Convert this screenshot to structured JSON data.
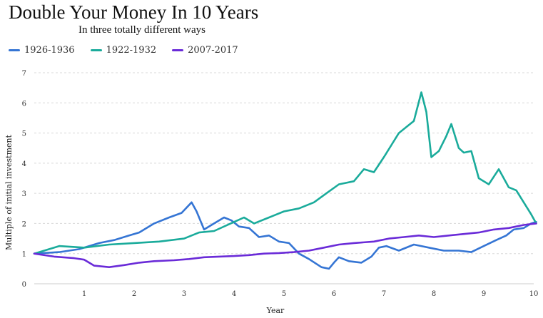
{
  "chart_data": {
    "type": "line",
    "title": "Double Your Money In 10 Years",
    "subtitle": "In three totally different ways",
    "xlabel": "Year",
    "ylabel": "Multiple of initial investment",
    "xlim": [
      0,
      10
    ],
    "ylim": [
      0,
      7
    ],
    "xticks": [
      "1",
      "2",
      "3",
      "4",
      "5",
      "6",
      "7",
      "8",
      "9",
      "10"
    ],
    "yticks": [
      "0",
      "1",
      "2",
      "3",
      "4",
      "5",
      "6",
      "7"
    ],
    "grid": "horizontal dashed",
    "legend_position": "top-left",
    "series": [
      {
        "name": "1926-1936",
        "color": "#3575d4",
        "x": [
          0,
          0.5,
          0.9,
          1.3,
          1.6,
          1.9,
          2.1,
          2.4,
          2.7,
          2.95,
          3.15,
          3.25,
          3.4,
          3.6,
          3.8,
          3.95,
          4.1,
          4.3,
          4.5,
          4.7,
          4.9,
          5.1,
          5.3,
          5.5,
          5.75,
          5.9,
          6.0,
          6.1,
          6.3,
          6.55,
          6.75,
          6.9,
          7.05,
          7.3,
          7.6,
          7.75,
          7.9,
          8.2,
          8.5,
          8.75,
          9.0,
          9.25,
          9.45,
          9.6,
          9.8,
          9.95,
          10.05
        ],
        "y": [
          1.0,
          1.05,
          1.15,
          1.35,
          1.45,
          1.6,
          1.7,
          2.0,
          2.2,
          2.35,
          2.7,
          2.4,
          1.8,
          2.0,
          2.2,
          2.1,
          1.9,
          1.85,
          1.55,
          1.6,
          1.4,
          1.35,
          1.0,
          0.82,
          0.55,
          0.5,
          0.7,
          0.88,
          0.75,
          0.7,
          0.9,
          1.2,
          1.25,
          1.1,
          1.3,
          1.25,
          1.2,
          1.1,
          1.1,
          1.05,
          1.25,
          1.45,
          1.6,
          1.8,
          1.85,
          2.0,
          2.05
        ]
      },
      {
        "name": "1922-1932",
        "color": "#1aab9b",
        "x": [
          0,
          0.5,
          1.0,
          1.5,
          2.0,
          2.5,
          3.0,
          3.3,
          3.6,
          4.0,
          4.2,
          4.4,
          4.7,
          5.0,
          5.3,
          5.6,
          5.85,
          6.1,
          6.4,
          6.6,
          6.8,
          7.0,
          7.15,
          7.3,
          7.45,
          7.6,
          7.75,
          7.85,
          7.95,
          8.1,
          8.25,
          8.35,
          8.5,
          8.6,
          8.75,
          8.9,
          9.1,
          9.3,
          9.5,
          9.65,
          9.8,
          9.95,
          10.05
        ],
        "y": [
          1.0,
          1.25,
          1.2,
          1.3,
          1.35,
          1.4,
          1.5,
          1.7,
          1.75,
          2.05,
          2.2,
          2.0,
          2.2,
          2.4,
          2.5,
          2.7,
          3.0,
          3.3,
          3.4,
          3.8,
          3.7,
          4.2,
          4.6,
          5.0,
          5.2,
          5.4,
          6.35,
          5.7,
          4.2,
          4.4,
          4.9,
          5.3,
          4.5,
          4.35,
          4.4,
          3.5,
          3.3,
          3.8,
          3.2,
          3.1,
          2.7,
          2.3,
          2.0
        ]
      },
      {
        "name": "2007-2017",
        "color": "#6a2bd8",
        "x": [
          0,
          0.4,
          0.8,
          1.0,
          1.2,
          1.5,
          1.8,
          2.1,
          2.4,
          2.8,
          3.1,
          3.4,
          3.7,
          4.0,
          4.3,
          4.6,
          4.9,
          5.2,
          5.5,
          5.8,
          6.1,
          6.4,
          6.8,
          7.1,
          7.4,
          7.7,
          8.0,
          8.3,
          8.6,
          8.9,
          9.2,
          9.5,
          9.8,
          10.05
        ],
        "y": [
          1.0,
          0.9,
          0.85,
          0.8,
          0.6,
          0.55,
          0.62,
          0.7,
          0.75,
          0.78,
          0.82,
          0.88,
          0.9,
          0.92,
          0.95,
          1.0,
          1.02,
          1.05,
          1.1,
          1.2,
          1.3,
          1.35,
          1.4,
          1.5,
          1.55,
          1.6,
          1.55,
          1.6,
          1.65,
          1.7,
          1.8,
          1.85,
          1.95,
          2.0
        ]
      }
    ]
  }
}
